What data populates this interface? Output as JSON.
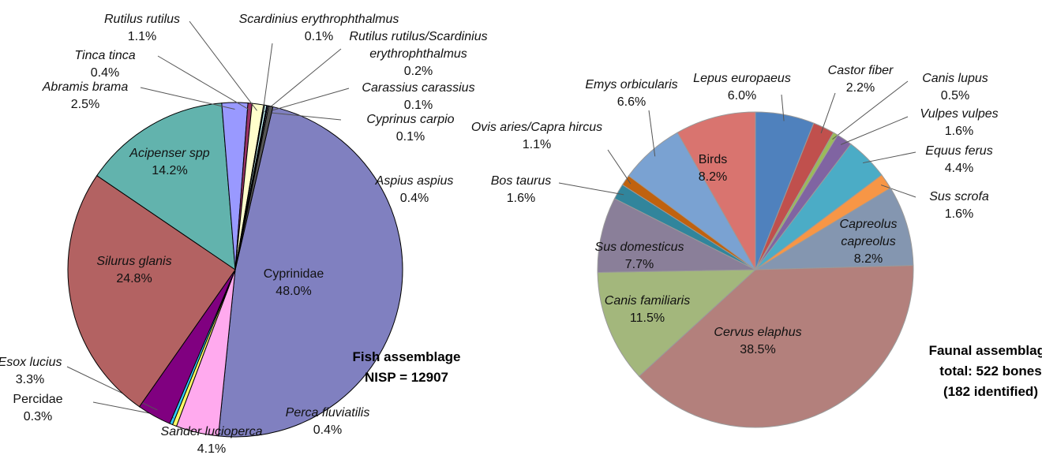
{
  "chart_data": [
    {
      "type": "pie",
      "categories": [
        "Cyprinidae",
        "Sander lucioperca",
        "Perca fluviatilis",
        "Percidae",
        "Esox lucius",
        "Silurus glanis",
        "Acipenser spp",
        "Abramis brama",
        "Tinca tinca",
        "Rutilus rutilus",
        "Scardinius erythrophthalmus",
        "Rutilus rutilus/Scardinius erythrophthalmus",
        "Carassius carassius",
        "Cyprinus carpio",
        "Aspius aspius"
      ],
      "values": [
        48.0,
        4.1,
        0.4,
        0.3,
        3.3,
        24.8,
        14.2,
        2.5,
        0.4,
        1.1,
        0.1,
        0.2,
        0.1,
        0.1,
        0.4
      ],
      "value_labels": [
        "48.0%",
        "4.1%",
        "0.4%",
        "0.3%",
        "3.3%",
        "24.8%",
        "14.2%",
        "2.5%",
        "0.4%",
        "1.1%",
        "0.1%",
        "0.2%",
        "0.1%",
        "0.1%",
        "0.4%"
      ],
      "colors": [
        "#8080c0",
        "#ffaaee",
        "#ffff66",
        "#33ccff",
        "#800080",
        "#b36262",
        "#62b3ad",
        "#9999ff",
        "#993366",
        "#ffffcc",
        "#000000",
        "#ccffff",
        "#000080",
        "#ffffff",
        "#555555"
      ],
      "annotations": [
        "Fish assemblage",
        "NISP = 12907"
      ]
    },
    {
      "type": "pie",
      "categories": [
        "Lepus europaeus",
        "Castor fiber",
        "Canis lupus",
        "Vulpes vulpes",
        "Equus ferus",
        "Sus scrofa",
        "Capreolus capreolus",
        "Cervus elaphus",
        "Canis familiaris",
        "Sus domesticus",
        "Bos taurus",
        "Ovis aries/Capra hircus",
        "Emys orbicularis",
        "Birds"
      ],
      "values": [
        6.0,
        2.2,
        0.5,
        1.6,
        4.4,
        1.6,
        8.2,
        38.5,
        11.5,
        7.7,
        1.6,
        1.1,
        6.6,
        8.2
      ],
      "value_labels": [
        "6.0%",
        "2.2%",
        "0.5%",
        "1.6%",
        "4.4%",
        "1.6%",
        "8.2%",
        "38.5%",
        "11.5%",
        "7.7%",
        "1.6%",
        "1.1%",
        "6.6%",
        "8.2%"
      ],
      "colors": [
        "#4f81bd",
        "#c0504d",
        "#9bbb59",
        "#8064a2",
        "#4bacc6",
        "#f79646",
        "#8496b0",
        "#b3807c",
        "#a3b77c",
        "#8a7f99",
        "#31859c",
        "#c0620f",
        "#7aa2d2",
        "#d9746f"
      ],
      "annotations": [
        "Faunal assemblage",
        "total: 522 bones",
        "(182 identified)"
      ]
    }
  ]
}
